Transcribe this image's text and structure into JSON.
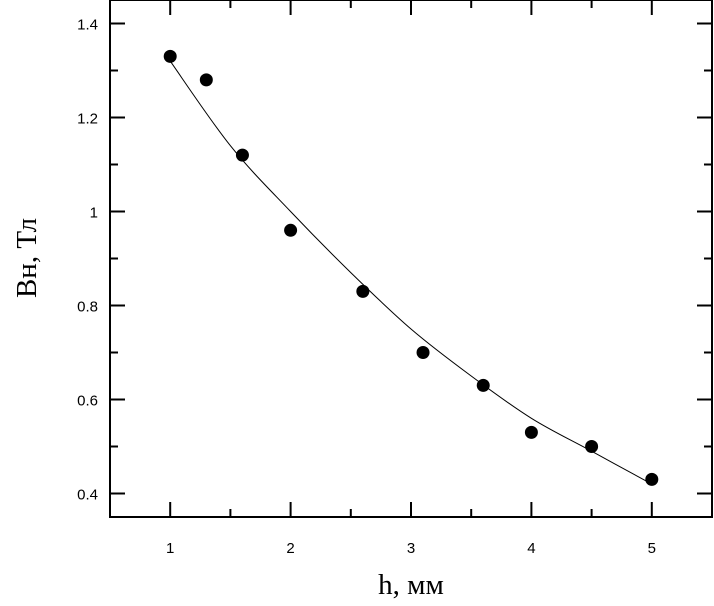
{
  "chart_data": {
    "type": "scatter",
    "xlabel": "h, мм",
    "ylabel": "Вн, Тл",
    "xlim": [
      0.5,
      5.5
    ],
    "ylim": [
      0.35,
      1.45
    ],
    "x_ticks": [
      1,
      2,
      3,
      4,
      5
    ],
    "x_tick_labels": [
      "1",
      "2",
      "3",
      "4",
      "5"
    ],
    "y_ticks": [
      0.4,
      0.6,
      0.8,
      1.0,
      1.2,
      1.4
    ],
    "y_tick_labels": [
      "0.4",
      "0.6",
      "0.8",
      "1",
      "1.2",
      "1.4"
    ],
    "grid": false,
    "series": [
      {
        "kind": "points",
        "x": [
          1.0,
          1.3,
          1.6,
          2.0,
          2.6,
          3.1,
          3.6,
          4.0,
          4.5,
          5.0
        ],
        "y": [
          1.33,
          1.28,
          1.12,
          0.96,
          0.83,
          0.7,
          0.63,
          0.53,
          0.5,
          0.43
        ]
      },
      {
        "kind": "fit-curve",
        "x": [
          1.0,
          1.5,
          2.0,
          2.5,
          3.0,
          3.5,
          4.0,
          4.5,
          5.0
        ],
        "y": [
          1.32,
          1.14,
          1.0,
          0.87,
          0.75,
          0.65,
          0.56,
          0.49,
          0.42
        ]
      }
    ]
  }
}
